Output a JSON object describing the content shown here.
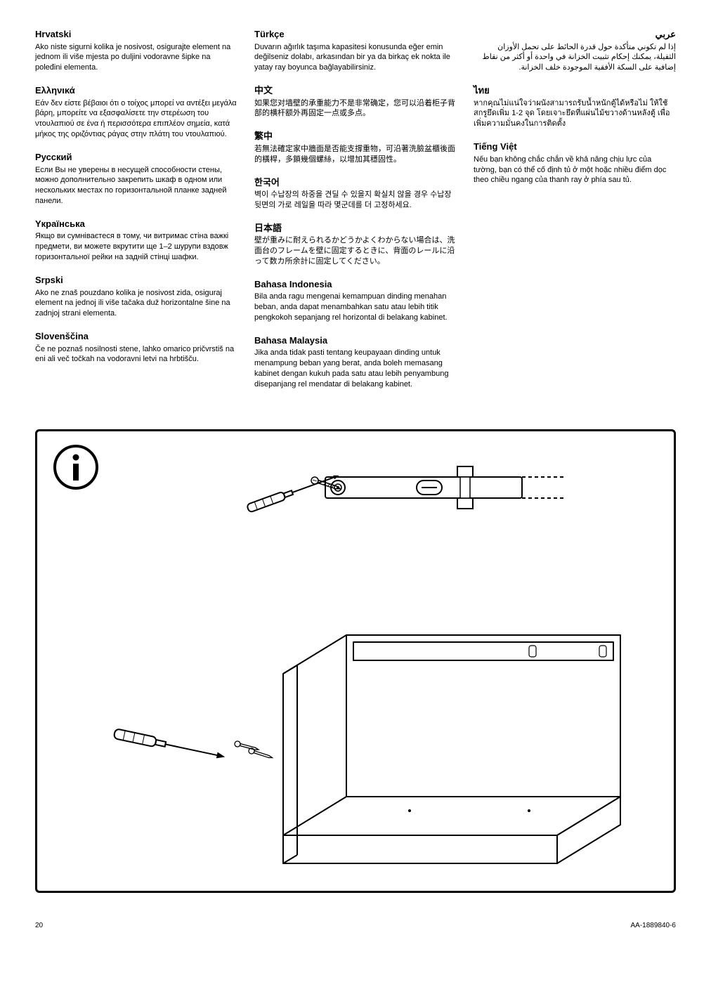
{
  "col1": [
    {
      "title": "Hrvatski",
      "text": "Ako niste sigurni kolika je nosivost, osigurajte element na jednom ili više mjesta po duljini vodoravne šipke na poleđini elementa."
    },
    {
      "title": "Ελληνικά",
      "text": "Εάν δεν είστε βέβαιοι ότι ο τοίχος μπορεί να αντέξει μεγάλα βάρη, μπορείτε να εξασφαλίσετε την στερέωση του ντουλαπιού σε ένα ή περισσότερα επιπλέον σημεία, κατά μήκος της οριζόντιας ράγας στην πλάτη του ντουλαπιού."
    },
    {
      "title": "Русский",
      "text": "Если Вы не уверены в несущей способности стены, можно дополнительно закрепить шкаф в одном или нескольких местах по горизонтальной планке задней панели."
    },
    {
      "title": "Yкраїнська",
      "text": "Якщо ви сумніваєтеся в тому, чи витримає стіна важкі предмети, ви можете вкрутити ще 1–2 шурупи вздовж горизонтальної рейки на задній стінці шафки."
    },
    {
      "title": "Srpski",
      "text": "Ako ne znaš pouzdano kolika je nosivost zida, osiguraj element na jednoj ili više tačaka duž horizontalne šine na zadnjoj strani elementa."
    },
    {
      "title": "Slovenščina",
      "text": "Če ne poznaš nosilnosti stene, lahko omarico pričvrstiš na eni ali več točkah na vodoravni letvi na hrbtišču."
    }
  ],
  "col2": [
    {
      "title": "Türkçe",
      "text": "Duvarın ağırlık taşıma kapasitesi konusunda eğer emin değilseniz dolabı, arkasından bir ya da birkaç ek nokta ile yatay ray boyunca bağlayabilirsiniz."
    },
    {
      "title": "中文",
      "text": "如果您对墙壁的承重能力不是非常确定，您可以沿着柜子背部的横杆额外再固定一点或多点。"
    },
    {
      "title": "繁中",
      "text": "若無法確定家中牆面是否能支撐重物，可沿著洗臉盆櫃後面的橫桿，多鎖幾個螺絲，以增加其穩固性。"
    },
    {
      "title": "한국어",
      "text": "벽이 수납장의 하중을 견딜 수 있을지 확실치 않을 경우 수납장 뒷면의 가로 레일을 따라 몇군데를 더 고정하세요."
    },
    {
      "title": "日本語",
      "text": "壁が重みに耐えられるかどうかよくわからない場合は、洗面台のフレームを壁に固定するときに、背面のレールに沿って数カ所余計に固定してください。"
    },
    {
      "title": "Bahasa Indonesia",
      "text": "Bila anda ragu mengenai kemampuan dinding menahan beban, anda dapat menambahkan satu atau lebih titik pengkokoh sepanjang rel horizontal di belakang kabinet."
    },
    {
      "title": "Bahasa Malaysia",
      "text": "Jika anda tidak pasti tentang keupayaan dinding untuk menampung beban yang berat, anda boleh memasang kabinet dengan kukuh pada satu atau lebih penyambung disepanjang rel mendatar di belakang kabinet."
    }
  ],
  "col3": [
    {
      "title": "عربي",
      "text": "إذا لم تكوني متأكدة حول قدرة الحائط على تحمل الأوزان الثقيلة، يمكنك إحكام تثبيت الخزانة في واحدة أو أكثر من نقاط إضافية على السكة الأفقية الموجودة خلف الخزانة.",
      "rtl": true
    },
    {
      "title": "ไทย",
      "text": "หากคุณไม่แน่ใจว่าผนังสามารถรับน้ำหนักตู้ได้หรือไม่ ให้ใช้สกรูยึดเพิ่ม 1-2 จุด โดยเจาะยึดที่แผ่นไม้ขวางด้านหลังตู้ เพื่อเพิ่มความมั่นคงในการติดตั้ง"
    },
    {
      "title": "Tiếng Việt",
      "text": "Nếu bạn không chắc chắn về khả năng chịu lực của tường, bạn có thể cố định tủ ở một hoặc nhiều điểm dọc theo chiều ngang của thanh ray ở phía sau tủ."
    }
  ],
  "footer": {
    "page": "20",
    "code": "AA-1889840-6"
  },
  "colors": {
    "text": "#000000",
    "bg": "#ffffff",
    "line": "#000000",
    "gray": "#a0a0a0"
  }
}
